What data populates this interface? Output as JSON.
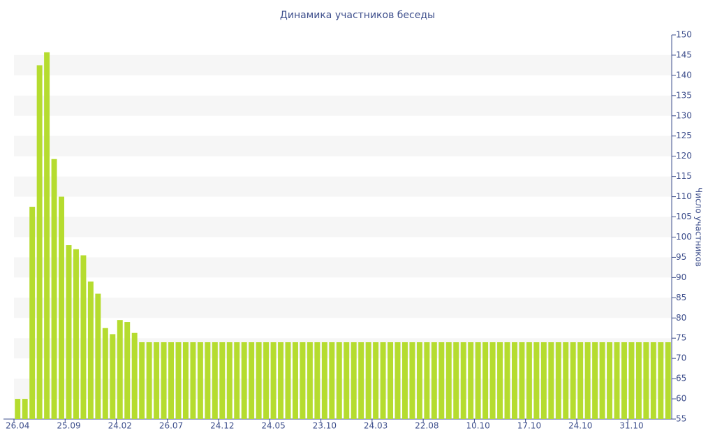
{
  "chart_data": {
    "type": "bar",
    "title": "Динамика участников беседы",
    "y_label": "Число участников",
    "categories": [
      "26.04",
      null,
      null,
      null,
      null,
      null,
      null,
      "25.09",
      null,
      null,
      null,
      null,
      null,
      null,
      "24.02",
      null,
      null,
      null,
      null,
      null,
      null,
      "26.07",
      null,
      null,
      null,
      null,
      null,
      null,
      "24.12",
      null,
      null,
      null,
      null,
      null,
      null,
      "24.05",
      null,
      null,
      null,
      null,
      null,
      null,
      "23.10",
      null,
      null,
      null,
      null,
      null,
      null,
      "24.03",
      null,
      null,
      null,
      null,
      null,
      null,
      "22.08",
      null,
      null,
      null,
      null,
      null,
      null,
      "10.10",
      null,
      null,
      null,
      null,
      null,
      null,
      "17.10",
      null,
      null,
      null,
      null,
      null,
      null,
      "24.10",
      null,
      null,
      null,
      null,
      null,
      null,
      "31.10",
      null,
      null,
      null,
      null,
      null
    ],
    "values": [
      60,
      60,
      107.5,
      142.5,
      145.7,
      119.3,
      110,
      98,
      97,
      95.5,
      89,
      86,
      77.5,
      76,
      79.5,
      79,
      76.3,
      74,
      74,
      74,
      74,
      74,
      74,
      74,
      74,
      74,
      74,
      74,
      74,
      74,
      74,
      74,
      74,
      74,
      74,
      74,
      74,
      74,
      74,
      74,
      74,
      74,
      74,
      74,
      74,
      74,
      74,
      74,
      74,
      74,
      74,
      74,
      74,
      74,
      74,
      74,
      74,
      74,
      74,
      74,
      74,
      74,
      74,
      74,
      74,
      74,
      74,
      74,
      74,
      74,
      74,
      74,
      74,
      74,
      74,
      74,
      74,
      74,
      74,
      74,
      74,
      74,
      74,
      74,
      74,
      74,
      74,
      74,
      74,
      74
    ],
    "color": "#b5dc2f",
    "ylim": [
      55,
      150
    ],
    "yticks": [
      55,
      60,
      65,
      70,
      75,
      80,
      85,
      90,
      95,
      100,
      105,
      110,
      115,
      120,
      125,
      130,
      135,
      140,
      145,
      150
    ],
    "grid": true
  }
}
